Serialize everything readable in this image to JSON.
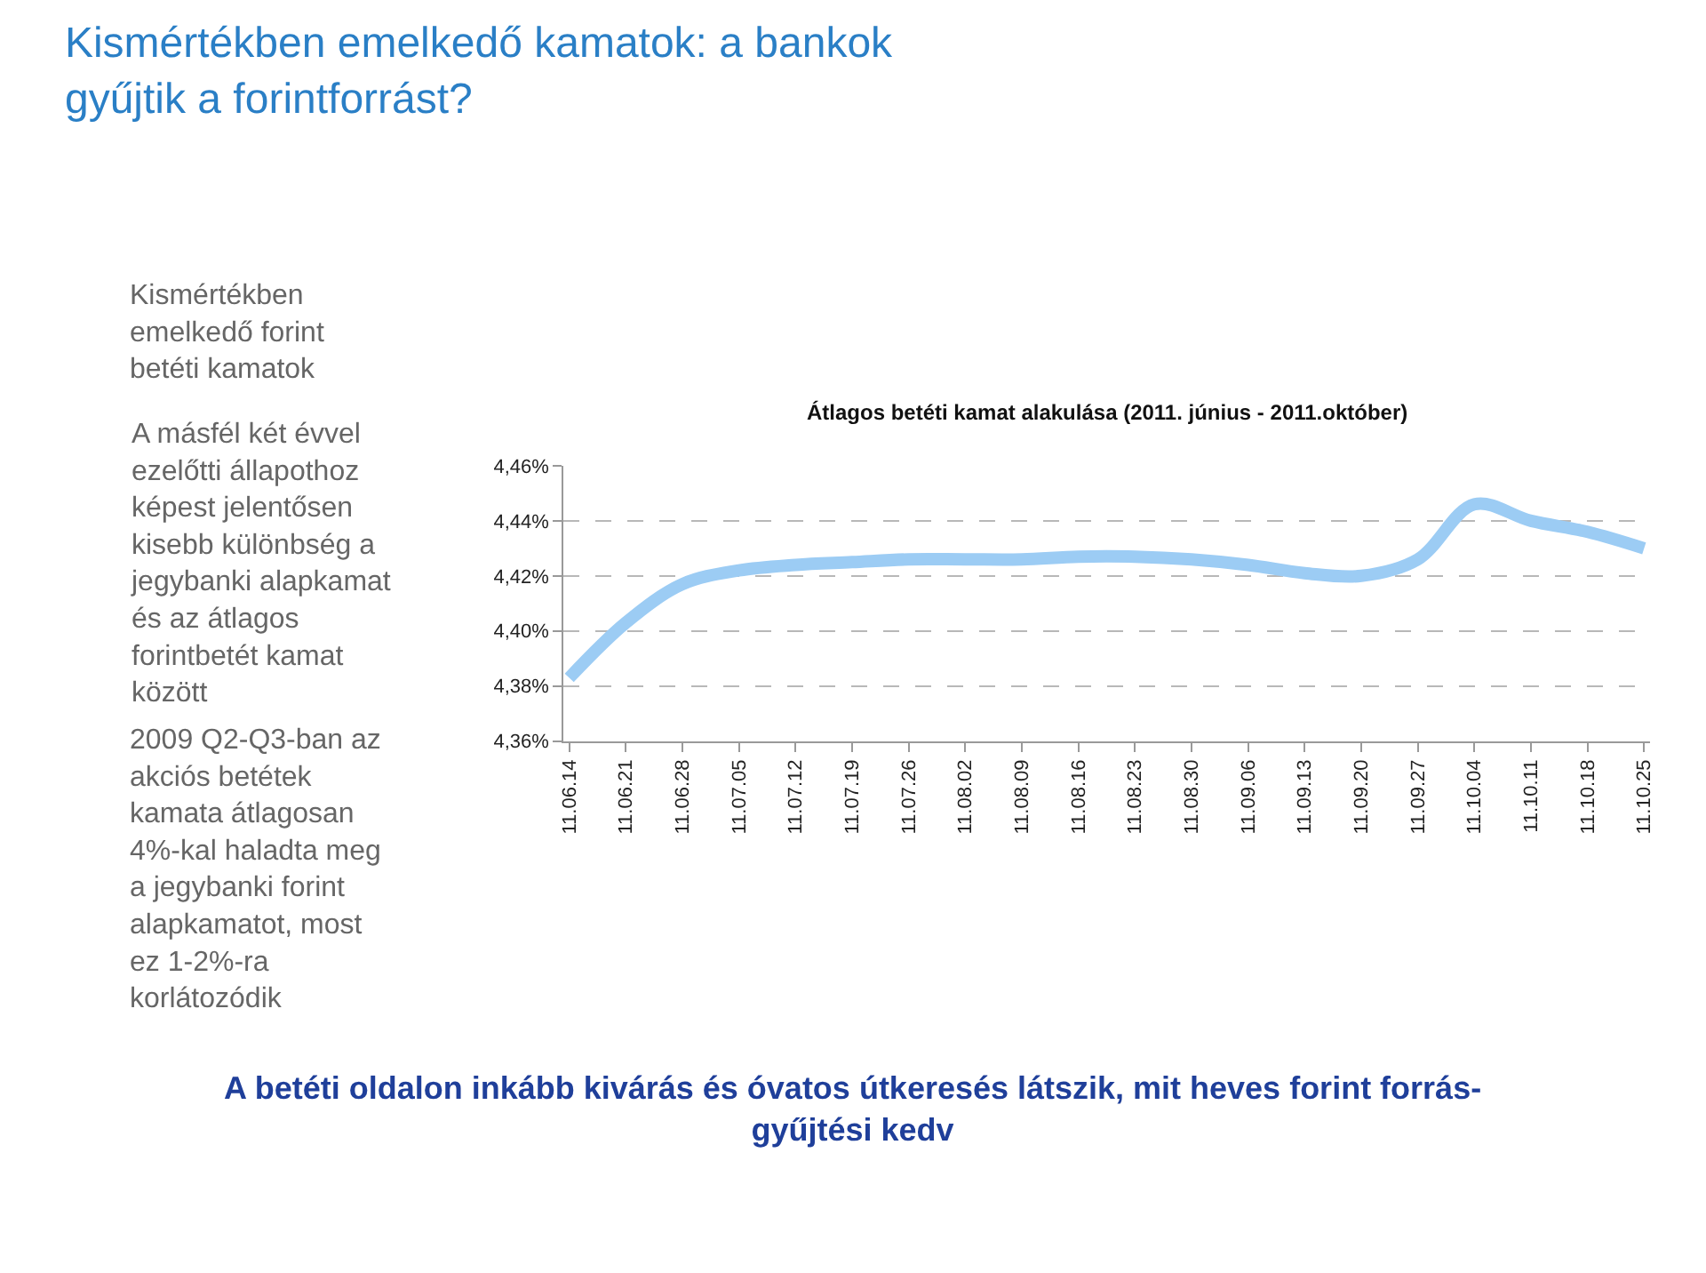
{
  "chart_data": {
    "type": "line",
    "title": "Kismértékben emelkedő kamatok: a bankok\ngyűjtik a forintforrást?",
    "subtitle": "Átlagos betéti kamat alakulása (2011. június - 2011.október)",
    "annotations": [
      "Kismértékben\nemelkedő forint\nbetéti kamatok",
      "A másfél két évvel\nezelőtti állapothoz\nképest jelentősen\nkisebb különbség a\njegybanki alapkamat\nés az átlagos\nforintbetét kamat\nközött",
      "2009 Q2-Q3-ban az\nakciós betétek\nkamata átlagosan\n4%-kal haladta meg\na jegybanki forint\nalapkamatot, most\nez 1-2%-ra\nkorlátozódik",
      "A betéti oldalon inkább kivárás és óvatos útkeresés látszik, mit heves forint forrás-\ngyűjtési kedv"
    ],
    "categories": [
      "11.06.14",
      "11.06.21",
      "11.06.28",
      "11.07.05",
      "11.07.12",
      "11.07.19",
      "11.07.26",
      "11.08.02",
      "11.08.09",
      "11.08.16",
      "11.08.23",
      "11.08.30",
      "11.09.06",
      "11.09.13",
      "11.09.20",
      "11.09.27",
      "11.10.04",
      "11.10.11",
      "11.10.18",
      "11.10.25"
    ],
    "series": [
      {
        "color": "#9cccf4",
        "values": [
          4.383,
          4.403,
          4.417,
          4.422,
          4.424,
          4.425,
          4.426,
          4.426,
          4.426,
          4.427,
          4.427,
          4.426,
          4.424,
          4.421,
          4.42,
          4.426,
          4.446,
          4.44,
          4.436,
          4.43
        ]
      }
    ],
    "ylim": [
      4.36,
      4.46
    ],
    "yticks": [
      {
        "value": 4.36,
        "label": "4,36%"
      },
      {
        "value": 4.38,
        "label": "4,38%"
      },
      {
        "value": 4.4,
        "label": "4,40%"
      },
      {
        "value": 4.42,
        "label": "4,42%"
      },
      {
        "value": 4.44,
        "label": "4,44%"
      },
      {
        "value": 4.46,
        "label": "4,46%"
      }
    ],
    "grid": "y",
    "line_style": "solid",
    "marker": "none"
  }
}
